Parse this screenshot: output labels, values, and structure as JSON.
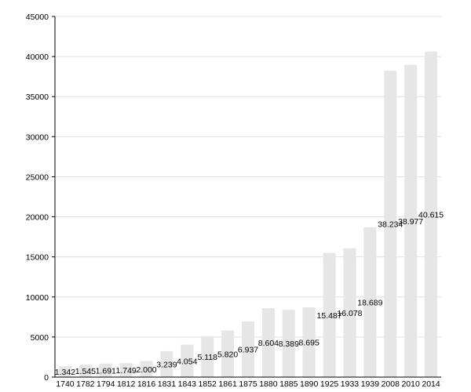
{
  "chart_data": {
    "type": "bar",
    "title": "",
    "xlabel": "",
    "ylabel": "",
    "ylim": [
      0,
      45000
    ],
    "yticks": [
      0,
      5000,
      10000,
      15000,
      20000,
      25000,
      30000,
      35000,
      40000,
      45000
    ],
    "grid": true,
    "legend": "none",
    "bar_color": "#e6e6e6",
    "categories": [
      "1740",
      "1782",
      "1794",
      "1812",
      "1816",
      "1831",
      "1843",
      "1852",
      "1861",
      "1875",
      "1880",
      "1885",
      "1890",
      "1925",
      "1933",
      "1939",
      "2008",
      "2010",
      "2014"
    ],
    "values": [
      1342,
      1545,
      1691,
      1749,
      2000,
      3239,
      4054,
      5118,
      5820,
      6937,
      8604,
      8389,
      8695,
      15487,
      16078,
      18689,
      38234,
      38977,
      40615
    ],
    "data_labels": [
      "1.342",
      "1.545",
      "1.691",
      "1.749",
      "2.000",
      "3.239",
      "4.054",
      "5.118",
      "5.820",
      "6.937",
      "8.604",
      "8.389",
      "8.695",
      "15.487",
      "16.078",
      "18.689",
      "38.234",
      "38.977",
      "40.615"
    ]
  }
}
